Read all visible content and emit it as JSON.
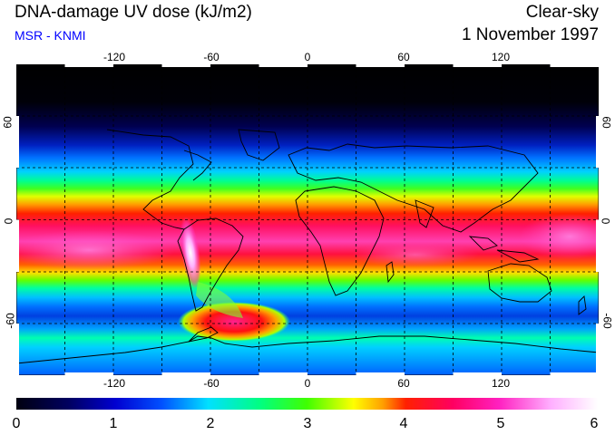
{
  "header": {
    "title": "DNA-damage UV dose (kJ/m2)",
    "subtitle": "MSR - KNMI",
    "condition": "Clear-sky",
    "date": "1 November 1997"
  },
  "map": {
    "projection": "equirectangular",
    "lon_range": [
      -180,
      180
    ],
    "lat_range": [
      -90,
      90
    ],
    "lon_ticks": [
      "-120",
      "-60",
      "0",
      "60",
      "120"
    ],
    "lat_ticks_left": [
      "60",
      "0",
      "-60"
    ],
    "lat_ticks_right": [
      "60",
      "0",
      "-60"
    ],
    "grid": "dashed 30-degree graticule",
    "field": "UV dose, low near poles (0), highest in tropics and over the Andes / Antarctic ozone hole region (~6)"
  },
  "colorbar": {
    "min": 0,
    "max": 6,
    "labels": [
      "0",
      "1",
      "2",
      "3",
      "4",
      "5",
      "6"
    ],
    "colors": [
      "#000010",
      "#0000a0",
      "#0060ff",
      "#00e0ff",
      "#00ff80",
      "#40ff00",
      "#ffff00",
      "#ffa000",
      "#ff2000",
      "#ff0060",
      "#ff20c0",
      "#ffb0ff",
      "#ffffff"
    ]
  }
}
